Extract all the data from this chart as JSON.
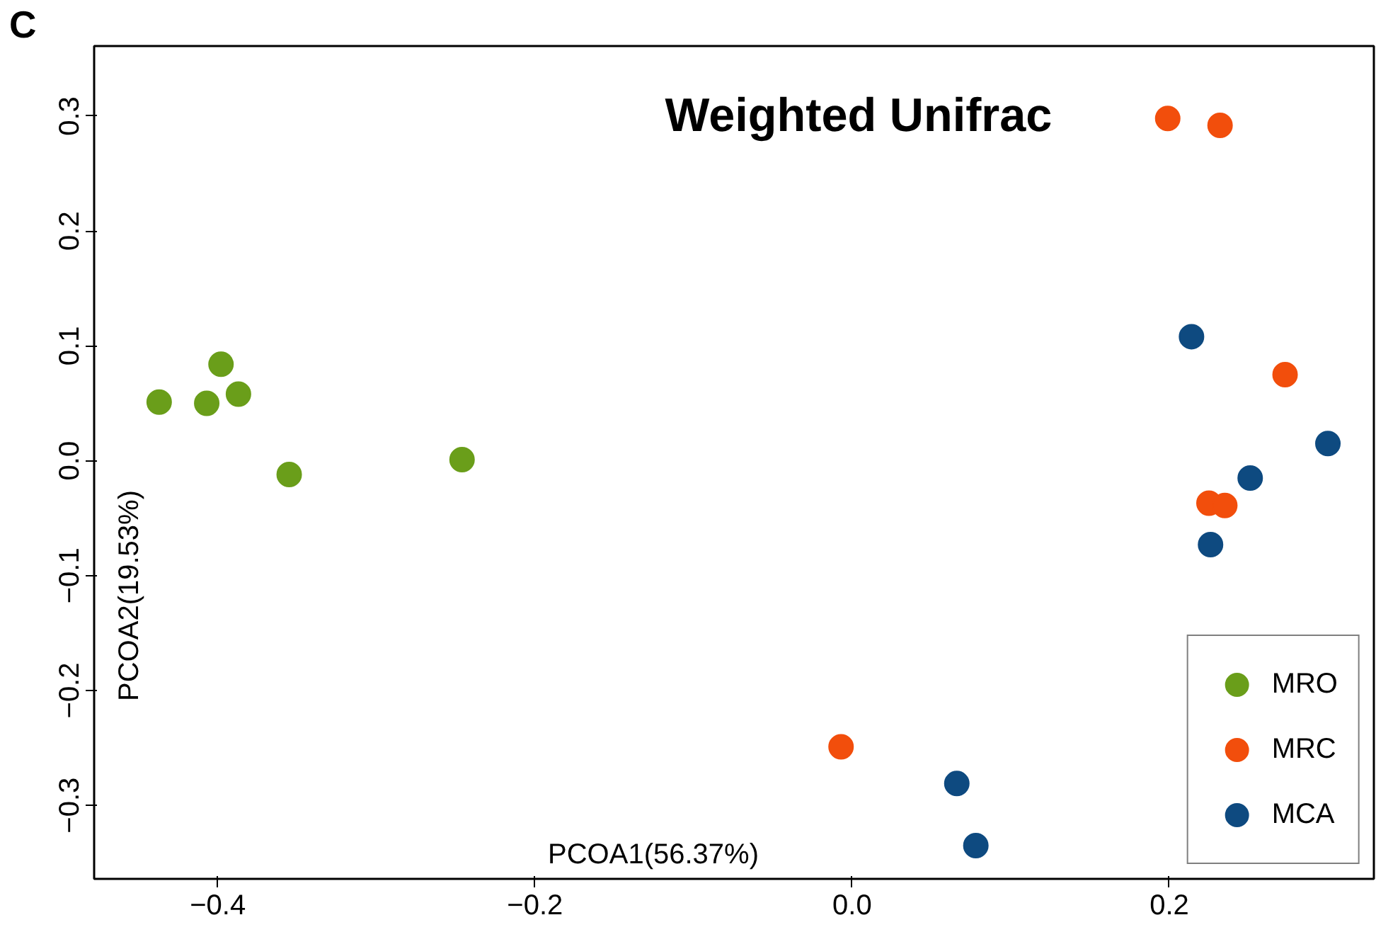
{
  "chart_data": {
    "type": "scatter",
    "title": "Weighted Unifrac",
    "xlabel": "PCOA1(56.37%)",
    "ylabel": "PCOA2(19.53%)",
    "annotations": [
      "C"
    ],
    "xlim": [
      -0.478,
      0.329
    ],
    "ylim": [
      -0.364,
      0.361
    ],
    "xticks": [
      {
        "value": -0.4,
        "label": "−0.4"
      },
      {
        "value": -0.2,
        "label": "−0.2"
      },
      {
        "value": 0.0,
        "label": "0.0"
      },
      {
        "value": 0.2,
        "label": "0.2"
      }
    ],
    "yticks": [
      {
        "value": -0.3,
        "label": "−0.3"
      },
      {
        "value": -0.2,
        "label": "−0.2"
      },
      {
        "value": -0.1,
        "label": "−0.1"
      },
      {
        "value": 0.0,
        "label": "0.0"
      },
      {
        "value": 0.1,
        "label": "0.1"
      },
      {
        "value": 0.2,
        "label": "0.2"
      },
      {
        "value": 0.3,
        "label": "0.3"
      }
    ],
    "marker": "circle",
    "grid": false,
    "legend": "bottom right",
    "series": [
      {
        "name": "MRO",
        "color": "#6a9e1a",
        "x": [
          -0.437,
          -0.398,
          -0.407,
          -0.387,
          -0.355,
          -0.246
        ],
        "values": [
          0.051,
          0.084,
          0.05,
          0.058,
          -0.012,
          0.001
        ]
      },
      {
        "name": "MRC",
        "color": "#f24e0c",
        "x": [
          0.199,
          0.232,
          0.273,
          0.225,
          0.235,
          -0.007
        ],
        "values": [
          0.298,
          0.292,
          0.075,
          -0.037,
          -0.039,
          -0.249
        ]
      },
      {
        "name": "MCA",
        "color": "#0e4a80",
        "x": [
          0.214,
          0.3,
          0.251,
          0.226,
          0.066,
          0.078
        ],
        "values": [
          0.108,
          0.015,
          -0.015,
          -0.073,
          -0.281,
          -0.335
        ]
      }
    ]
  }
}
